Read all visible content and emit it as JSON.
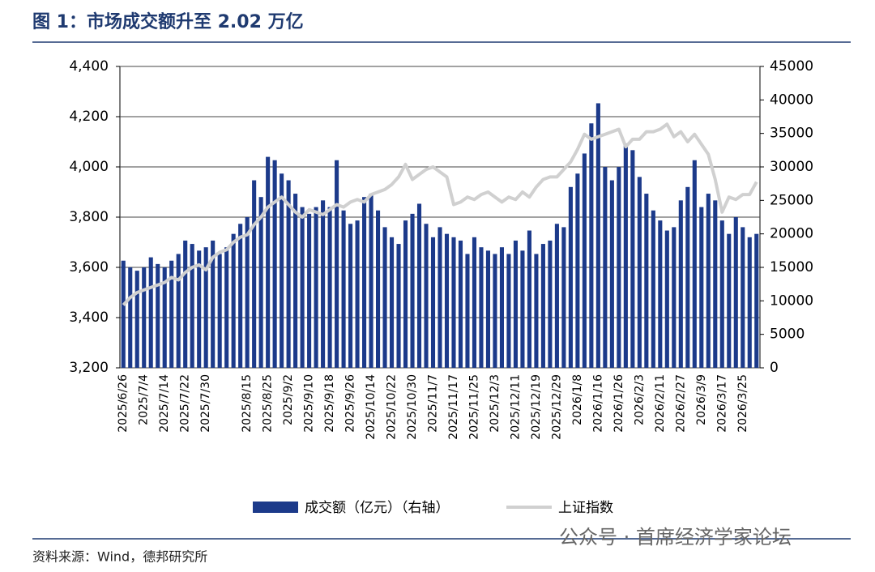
{
  "chart_data": {
    "type": "bar",
    "title": "图 1：市场成交额升至 2.02 万亿",
    "source": "资料来源：Wind，德邦研究所",
    "watermark": "公众号 · 首席经济学家论坛",
    "categories": [
      "2025/6/26",
      null,
      null,
      "2025/7/4",
      null,
      null,
      "2025/7/14",
      null,
      null,
      "2025/7/22",
      null,
      null,
      "2025/7/30",
      null,
      null,
      null,
      null,
      null,
      "2025/8/15",
      null,
      null,
      "2025/8/25",
      null,
      null,
      "2025/9/2",
      null,
      null,
      "2025/9/10",
      null,
      null,
      "2025/9/18",
      null,
      null,
      "2025/9/26",
      null,
      null,
      "2025/10/14",
      null,
      null,
      "2025/10/22",
      null,
      null,
      "2025/10/30",
      null,
      null,
      "2025/11/7",
      null,
      null,
      "2025/11/17",
      null,
      null,
      "2025/11/25",
      null,
      null,
      "2025/12/3",
      null,
      null,
      "2025/12/11",
      null,
      null,
      "2025/12/19",
      null,
      null,
      "2025/12/29",
      null,
      null,
      "2026/1/8",
      null,
      null,
      "2026/1/16",
      null,
      null,
      "2026/1/26",
      null,
      null,
      "2026/2/3",
      null,
      null,
      "2026/2/11",
      null,
      null,
      "2026/2/27",
      null,
      null,
      "2026/3/9",
      null,
      null,
      "2026/3/17",
      null,
      null,
      "2026/3/25",
      null,
      null
    ],
    "series": [
      {
        "name": "成交额（亿元）（右轴）",
        "type": "bar",
        "axis": "y2",
        "color": "#1c3a8a",
        "values": [
          16000,
          15000,
          14500,
          15000,
          16500,
          15500,
          15000,
          16000,
          17000,
          19000,
          18500,
          17500,
          18000,
          19000,
          17000,
          18000,
          20000,
          21500,
          22500,
          28000,
          25500,
          31500,
          31000,
          29000,
          28000,
          26000,
          24000,
          23000,
          24000,
          25000,
          24000,
          31000,
          23500,
          21500,
          22000,
          25500,
          26000,
          23500,
          21000,
          19500,
          18500,
          22000,
          23000,
          24500,
          21500,
          19500,
          21000,
          20000,
          19500,
          19000,
          17000,
          19500,
          18000,
          17500,
          17000,
          18000,
          17000,
          19000,
          17500,
          20500,
          17000,
          18500,
          19000,
          21500,
          21000,
          27000,
          29000,
          32000,
          36500,
          39500,
          30000,
          28000,
          30000,
          33500,
          32500,
          28500,
          26000,
          23500,
          22000,
          20500,
          21000,
          25000,
          27000,
          31000,
          24000,
          26000,
          25000,
          22000,
          20000,
          22500,
          21000,
          19500,
          20000
        ]
      },
      {
        "name": "上证指数",
        "type": "line",
        "color": "#d0d0d0",
        "values": [
          3450,
          3480,
          3500,
          3510,
          3520,
          3530,
          3540,
          3560,
          3550,
          3580,
          3600,
          3610,
          3590,
          3640,
          3660,
          3670,
          3700,
          3720,
          3730,
          3770,
          3800,
          3840,
          3860,
          3880,
          3850,
          3820,
          3800,
          3830,
          3820,
          3810,
          3830,
          3850,
          3840,
          3860,
          3870,
          3860,
          3890,
          3900,
          3910,
          3930,
          3960,
          4010,
          3950,
          3970,
          3990,
          4000,
          3980,
          3960,
          3850,
          3860,
          3880,
          3870,
          3890,
          3900,
          3880,
          3860,
          3880,
          3870,
          3900,
          3880,
          3920,
          3950,
          3960,
          3960,
          3990,
          4020,
          4070,
          4130,
          4110,
          4120,
          4130,
          4140,
          4150,
          4080,
          4110,
          4110,
          4140,
          4140,
          4150,
          4170,
          4120,
          4140,
          4100,
          4130,
          4090,
          4050,
          3950,
          3820,
          3880,
          3870,
          3890,
          3890,
          3940
        ]
      }
    ],
    "ylim": [
      3200,
      4400
    ],
    "yticks": [
      {
        "value": 3200,
        "label": "3,200"
      },
      {
        "value": 3400,
        "label": "3,400"
      },
      {
        "value": 3600,
        "label": "3,600"
      },
      {
        "value": 3800,
        "label": "3,800"
      },
      {
        "value": 4000,
        "label": "4,000"
      },
      {
        "value": 4200,
        "label": "4,200"
      },
      {
        "value": 4400,
        "label": "4,400"
      }
    ],
    "y2lim": [
      0,
      45000
    ],
    "y2ticks": [
      0,
      5000,
      10000,
      15000,
      20000,
      25000,
      30000,
      35000,
      40000,
      45000
    ],
    "grid": true
  }
}
